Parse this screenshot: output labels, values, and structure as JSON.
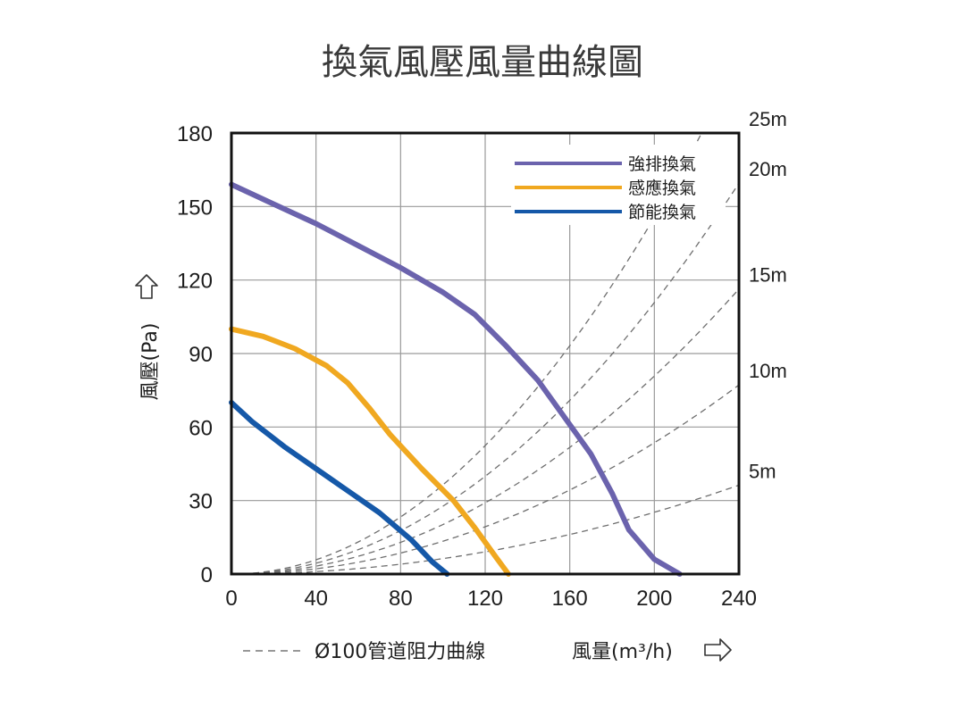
{
  "title": "換氣風壓風量曲線圖",
  "chart_data": {
    "type": "line",
    "title": "換氣風壓風量曲線圖",
    "xlabel": "風量(m³/h)",
    "ylabel": "風壓(Pa)",
    "xlim": [
      0,
      240
    ],
    "ylim": [
      0,
      180
    ],
    "x_ticks": [
      "0",
      "40",
      "80",
      "120",
      "160",
      "200",
      "240"
    ],
    "y_ticks": [
      "0",
      "30",
      "60",
      "90",
      "120",
      "150",
      "180"
    ],
    "grid": true,
    "legend_position": "top-right",
    "series": [
      {
        "name": "強排換氣",
        "color": "#6b63ad",
        "points": [
          [
            0,
            159
          ],
          [
            20,
            151
          ],
          [
            40,
            143
          ],
          [
            60,
            134
          ],
          [
            80,
            125
          ],
          [
            100,
            115
          ],
          [
            115,
            106
          ],
          [
            130,
            93
          ],
          [
            145,
            79
          ],
          [
            160,
            61
          ],
          [
            170,
            49
          ],
          [
            180,
            33
          ],
          [
            188,
            18
          ],
          [
            200,
            6
          ],
          [
            212,
            0
          ]
        ]
      },
      {
        "name": "感應換氣",
        "color": "#f0a820",
        "points": [
          [
            0,
            100
          ],
          [
            15,
            97
          ],
          [
            30,
            92
          ],
          [
            45,
            85
          ],
          [
            55,
            78
          ],
          [
            65,
            68
          ],
          [
            75,
            57
          ],
          [
            90,
            43
          ],
          [
            105,
            30
          ],
          [
            115,
            19
          ],
          [
            125,
            7
          ],
          [
            131,
            0
          ]
        ]
      },
      {
        "name": "節能換氣",
        "color": "#1558a8",
        "points": [
          [
            0,
            70
          ],
          [
            10,
            62
          ],
          [
            25,
            52
          ],
          [
            40,
            43
          ],
          [
            55,
            34
          ],
          [
            70,
            25
          ],
          [
            85,
            14
          ],
          [
            95,
            5
          ],
          [
            102,
            0
          ]
        ]
      }
    ],
    "resistance_curves": {
      "legend": "Ø100管道阻力曲線",
      "labels": [
        "25m",
        "20m",
        "15m",
        "10m",
        "5m"
      ],
      "k": [
        0.00364,
        0.00277,
        0.00202,
        0.00134,
        0.00063
      ]
    }
  }
}
